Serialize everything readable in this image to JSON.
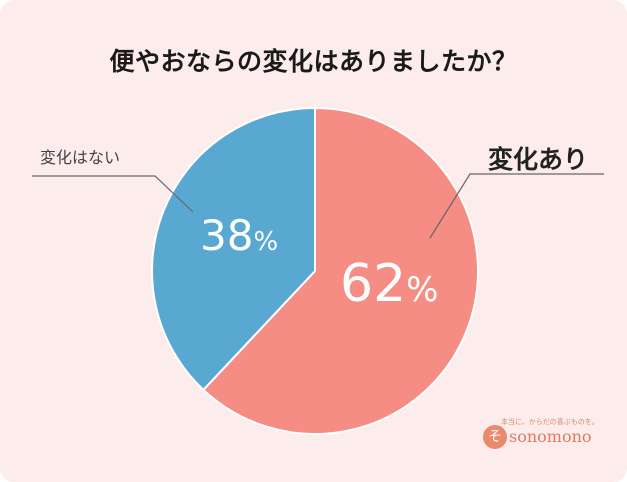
{
  "title": "便やおならの変化はありましたか？",
  "chart_data": {
    "type": "pie",
    "slices": [
      {
        "label": "変化あり",
        "value": 62,
        "unit": "%",
        "color": "#f68d85"
      },
      {
        "label": "変化はない",
        "value": 38,
        "unit": "%",
        "color": "#58a8d2"
      }
    ],
    "start": "12 o'clock",
    "direction": "clockwise"
  },
  "logo": {
    "tagline": "本当に、からだの喜ぶものを。",
    "wordmark": "sonomono",
    "mark": "そ"
  }
}
